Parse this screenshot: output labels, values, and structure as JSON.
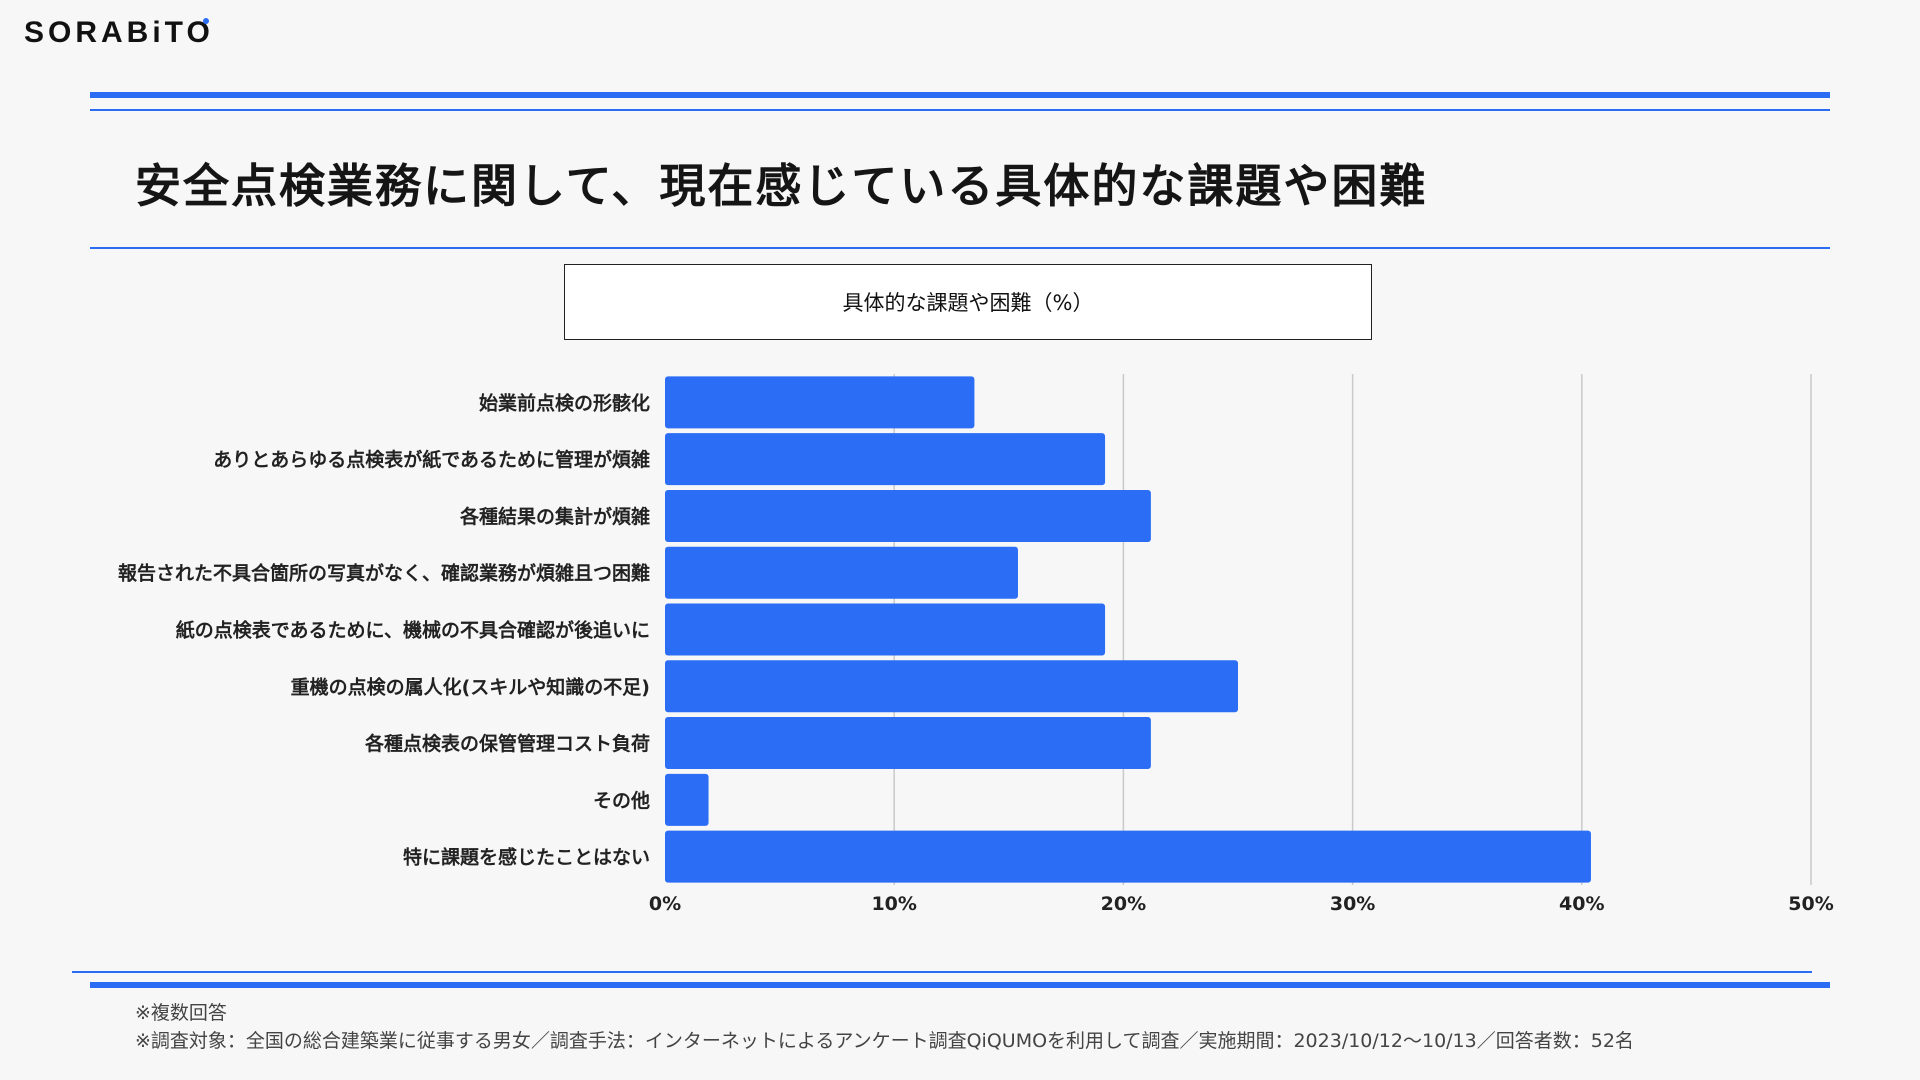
{
  "brand": {
    "name": "SORABiTO"
  },
  "title": "安全点検業務に関して、現在感じている具体的な課題や困難",
  "chart_data": {
    "type": "bar",
    "orientation": "horizontal",
    "legend": "具体的な課題や困難（%）",
    "legend_placement": "top",
    "categories": [
      "始業前点検の形骸化",
      "ありとあらゆる点検表が紙であるために管理が煩雑",
      "各種結果の集計が煩雑",
      "報告された不具合箇所の写真がなく、確認業務が煩雑且つ困難",
      "紙の点検表であるために、機械の不具合確認が後追いに",
      "重機の点検の属人化(スキルや知識の不足)",
      "各種点検表の保管管理コスト負荷",
      "その他",
      "特に課題を感じたことはない"
    ],
    "series": [
      {
        "values": [
          13.5,
          19.2,
          21.2,
          15.4,
          19.2,
          25.0,
          21.2,
          1.9,
          40.4
        ]
      }
    ],
    "xlim": [
      0,
      50
    ],
    "xticks": [
      "0%",
      "10%",
      "20%",
      "30%",
      "40%",
      "50%"
    ],
    "grid": true,
    "bar_color": "#2b6ef5"
  },
  "notes": {
    "line1": "※複数回答",
    "line2": "※調査対象：全国の総合建築業に従事する男女／調査手法：インターネットによるアンケート調査QiQUMOを利用して調査／実施期間：2023/10/12〜10/13／回答者数：52名"
  }
}
